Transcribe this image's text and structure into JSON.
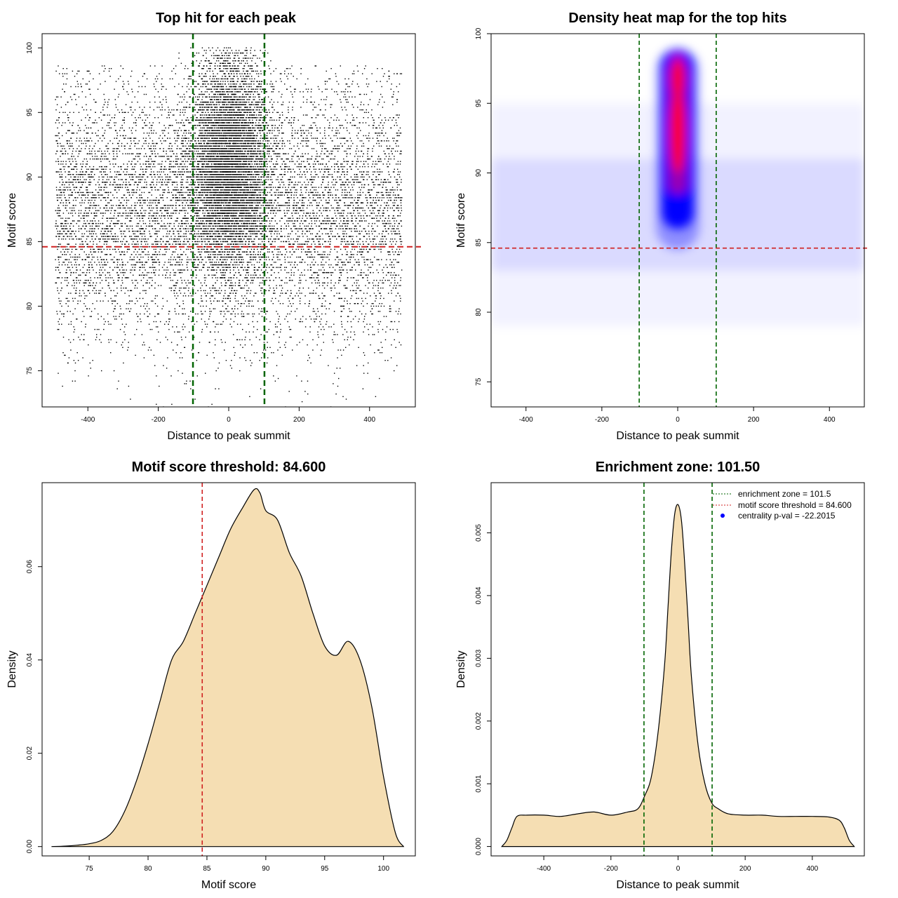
{
  "colors": {
    "enrichment_line": "#006400",
    "threshold_line": "#d02020",
    "density_fill": "#f5deb3",
    "heat_low": "#ffffff",
    "heat_mid": "#0000ff",
    "heat_high": "#ff0000",
    "pval_point": "#0000ff"
  },
  "chart_data": [
    {
      "type": "scatter",
      "title": "Top hit for each peak",
      "xlabel": "Distance to peak summit",
      "ylabel": "Motif score",
      "xlim": [
        -530,
        530
      ],
      "ylim": [
        72.2,
        101.1
      ],
      "xticks": [
        -400,
        -200,
        0,
        200,
        400
      ],
      "xtick_labels": [
        "-400",
        "-200",
        "0",
        "200",
        "400"
      ],
      "yticks": [
        75,
        80,
        85,
        90,
        95,
        100
      ],
      "ytick_labels": [
        "75",
        "80",
        "85",
        "90",
        "95",
        "100"
      ],
      "enrichment_zone": [
        -101.5,
        101.5
      ],
      "threshold": 84.6,
      "description_model": {
        "background_x_range": [
          -492,
          492
        ],
        "background_score_mean": 87.5,
        "background_score_sd": 5.0,
        "central_x_sd": 55,
        "central_score_mean": 91.0,
        "central_score_sd": 4.0,
        "score_max": 100
      }
    },
    {
      "type": "heatmap",
      "title": "Density heat map for the top hits",
      "xlabel": "Distance to peak summit",
      "ylabel": "Motif score",
      "xlim": [
        -492,
        492
      ],
      "ylim": [
        73.2,
        100.0
      ],
      "xticks": [
        -400,
        -200,
        0,
        200,
        400
      ],
      "xtick_labels": [
        "-400",
        "-200",
        "0",
        "200",
        "400"
      ],
      "yticks": [
        75,
        80,
        85,
        90,
        95,
        100
      ],
      "ytick_labels": [
        "75",
        "80",
        "85",
        "90",
        "95",
        "100"
      ],
      "enrichment_zone": [
        -101.5,
        101.5
      ],
      "threshold": 84.6,
      "density_model": {
        "core_center_x": 0,
        "core_x_sd": 30,
        "core_score_range": [
          86,
          98.5
        ],
        "peak_score": 93,
        "background_score_mean": 88,
        "background_score_sd": 4
      }
    },
    {
      "type": "area",
      "title": "Motif score threshold: 84.600",
      "xlabel": "Motif score",
      "ylabel": "Density",
      "xlim": [
        71.0,
        102.7
      ],
      "ylim": [
        -0.002,
        0.078
      ],
      "xticks": [
        75,
        80,
        85,
        90,
        95,
        100
      ],
      "xtick_labels": [
        "75",
        "80",
        "85",
        "90",
        "95",
        "100"
      ],
      "yticks": [
        0.0,
        0.02,
        0.04,
        0.06
      ],
      "ytick_labels": [
        "0.00",
        "0.02",
        "0.04",
        "0.06"
      ],
      "threshold": 84.6,
      "x": [
        71.8,
        73.0,
        74.0,
        75.0,
        76.0,
        77.0,
        78.0,
        79.0,
        80.0,
        81.0,
        82.0,
        83.0,
        84.0,
        85.0,
        86.0,
        87.0,
        88.0,
        89.0,
        89.5,
        90.0,
        91.0,
        92.0,
        93.0,
        94.0,
        95.0,
        96.0,
        97.0,
        98.0,
        99.0,
        100.0,
        101.0,
        101.7
      ],
      "y": [
        0.0,
        0.0001,
        0.0003,
        0.0006,
        0.0013,
        0.0032,
        0.0075,
        0.014,
        0.022,
        0.031,
        0.04,
        0.044,
        0.05,
        0.056,
        0.062,
        0.068,
        0.0725,
        0.0765,
        0.0758,
        0.072,
        0.07,
        0.063,
        0.058,
        0.05,
        0.043,
        0.041,
        0.044,
        0.04,
        0.03,
        0.015,
        0.003,
        0.0
      ]
    },
    {
      "type": "area",
      "title": "Enrichment zone: 101.50",
      "xlabel": "Distance to peak summit",
      "ylabel": "Density",
      "xlim": [
        -557,
        555
      ],
      "ylim": [
        -0.00015,
        0.0058
      ],
      "xticks": [
        -400,
        -200,
        0,
        200,
        400
      ],
      "xtick_labels": [
        "-400",
        "-200",
        "0",
        "200",
        "400"
      ],
      "yticks": [
        0.0,
        0.001,
        0.002,
        0.003,
        0.004,
        0.005
      ],
      "ytick_labels": [
        "0.000",
        "0.001",
        "0.002",
        "0.003",
        "0.004",
        "0.005"
      ],
      "enrichment_zone": [
        -101.5,
        101.5
      ],
      "x": [
        -525,
        -510,
        -495,
        -480,
        -450,
        -400,
        -350,
        -300,
        -250,
        -200,
        -150,
        -120,
        -100,
        -80,
        -60,
        -40,
        -30,
        -20,
        -10,
        0,
        10,
        20,
        30,
        40,
        60,
        80,
        100,
        120,
        150,
        200,
        250,
        300,
        350,
        400,
        450,
        480,
        495,
        510,
        525
      ],
      "y": [
        0.0,
        0.0001,
        0.0003,
        0.00048,
        0.0005,
        0.0005,
        0.00048,
        0.00052,
        0.00055,
        0.0005,
        0.00055,
        0.0006,
        0.0008,
        0.0011,
        0.0018,
        0.0029,
        0.0038,
        0.0047,
        0.0053,
        0.00545,
        0.0052,
        0.0045,
        0.0036,
        0.0027,
        0.0016,
        0.001,
        0.0007,
        0.0006,
        0.00052,
        0.0005,
        0.0005,
        0.00048,
        0.00048,
        0.00048,
        0.00047,
        0.00042,
        0.0003,
        0.0001,
        0.0
      ]
    }
  ],
  "legend": {
    "items": [
      {
        "label": "enrichment zone = 101.5",
        "kind": "line",
        "color": "#006400"
      },
      {
        "label": "motif score threshold = 84.600",
        "kind": "line",
        "color": "#d02020"
      },
      {
        "label": "centrality p-val = -22.2015",
        "kind": "point",
        "color": "#0000ff"
      }
    ]
  }
}
